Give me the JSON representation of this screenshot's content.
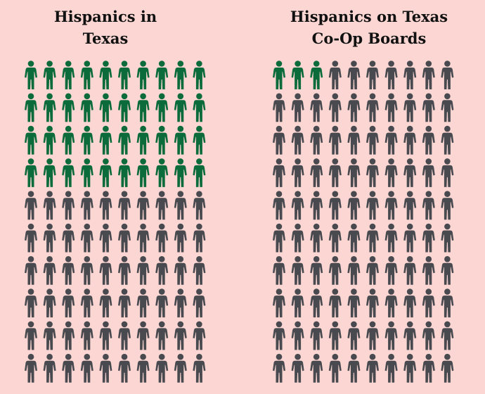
{
  "colors": {
    "background": "#fbd6d2",
    "highlight": "#0b6b3a",
    "base": "#484a50",
    "title": "#111111"
  },
  "chart_data": [
    {
      "type": "pictogram",
      "title_lines": [
        "Hispanics in",
        "Texas"
      ],
      "rows": 10,
      "columns": 10,
      "total": 100,
      "highlighted": 40,
      "icon": "person-icon"
    },
    {
      "type": "pictogram",
      "title_lines": [
        "Hispanics on Texas",
        "Co-Op Boards"
      ],
      "rows": 10,
      "columns": 10,
      "total": 100,
      "highlighted": 3,
      "icon": "person-icon"
    }
  ]
}
